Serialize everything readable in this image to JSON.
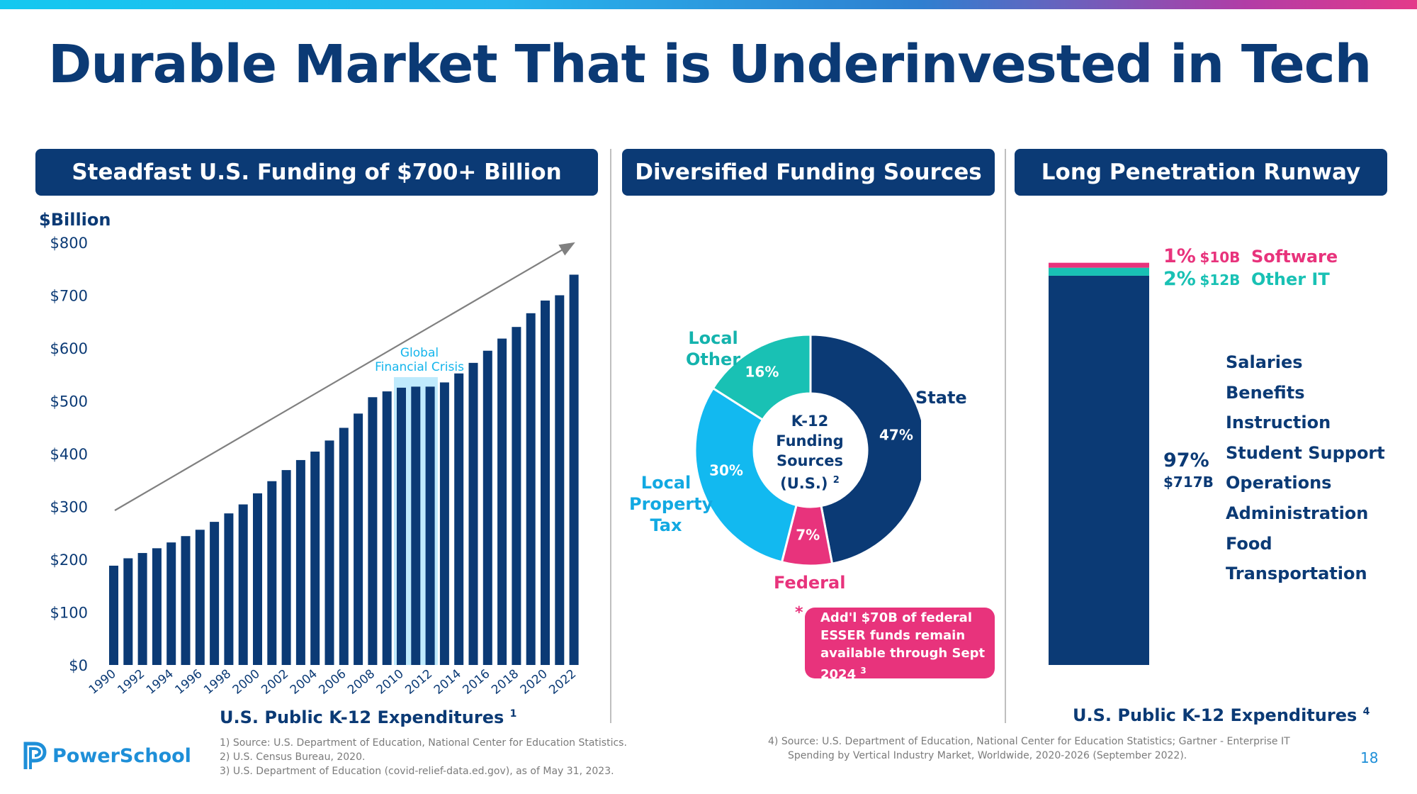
{
  "title": "Durable Market That is Underinvested in Tech",
  "panels": {
    "left_header": "Steadfast U.S. Funding of $700+ Billion",
    "middle_header": "Diversified Funding Sources",
    "right_header": "Long Penetration Runway"
  },
  "left": {
    "y_unit": "$Billion",
    "annotation": "Global Financial Crisis",
    "annotation_lines": [
      "Global",
      "Financial Crisis"
    ],
    "xlabel": "U.S. Public K-12 Expenditures",
    "xlabel_sup": "1",
    "colors": {
      "bar": "#0b3a75",
      "highlight": "#bfeafc",
      "trend": "#808080"
    }
  },
  "middle": {
    "center_lines": [
      "K-12",
      "Funding",
      "Sources",
      "(U.S.)"
    ],
    "center_sup": "2",
    "state_label": "State",
    "federal_label": "Federal",
    "local_other_lines": [
      "Local",
      "Other"
    ],
    "local_property_lines": [
      "Local",
      "Property",
      "Tax"
    ],
    "esser_star": "*",
    "esser_lines": [
      "Add'l $70B of federal",
      "ESSER funds remain",
      "available through Sept",
      "2024"
    ],
    "esser_sup": "3"
  },
  "right": {
    "software_pct": "1%",
    "software_amt": "$10B",
    "software_label": "Software",
    "otherit_pct": "2%",
    "otherit_amt": "$12B",
    "otherit_label": "Other IT",
    "rest_pct": "97%",
    "rest_amt": "$717B",
    "categories": [
      "Salaries",
      "Benefits",
      "Instruction",
      "Student Support",
      "Operations",
      "Administration",
      "Food",
      "Transportation"
    ],
    "xlabel": "U.S. Public K-12 Expenditures",
    "xlabel_sup": "4",
    "colors": {
      "software": "#e8337c",
      "other_it": "#19c1b4",
      "rest": "#0b3a75"
    }
  },
  "footnotes": {
    "f1": "1)   Source: U.S. Department of Education, National Center for Education Statistics.",
    "f2": "2)   U.S. Census Bureau, 2020.",
    "f3": "3)   U.S. Department of Education (covid-relief-data.ed.gov), as of May 31, 2023.",
    "f4a": "4)   Source: U.S. Department of Education, National Center for Education Statistics; Gartner - Enterprise IT",
    "f4b": "Spending by Vertical Industry Market, Worldwide, 2020-2026 (September 2022)."
  },
  "logo": "PowerSchool",
  "page_number": "18",
  "chart_data": [
    {
      "type": "bar",
      "title": "Steadfast U.S. Funding of $700+ Billion",
      "ylabel": "$Billion",
      "xlabel": "U.S. Public K-12 Expenditures",
      "ylim": [
        0,
        800
      ],
      "yticks": [
        0,
        100,
        200,
        300,
        400,
        500,
        600,
        700,
        800
      ],
      "ytick_labels": [
        "$0",
        "$100",
        "$200",
        "$300",
        "$400",
        "$500",
        "$600",
        "$700",
        "$800"
      ],
      "xtick_labels": [
        "1990",
        "1992",
        "1994",
        "1996",
        "1998",
        "2000",
        "2002",
        "2004",
        "2006",
        "2008",
        "2010",
        "2012",
        "2014",
        "2016",
        "2018",
        "2020",
        "2022"
      ],
      "categories": [
        "1990",
        "1991",
        "1992",
        "1993",
        "1994",
        "1995",
        "1996",
        "1997",
        "1998",
        "1999",
        "2000",
        "2001",
        "2002",
        "2003",
        "2004",
        "2005",
        "2006",
        "2007",
        "2008",
        "2009",
        "2010",
        "2011",
        "2012",
        "2013",
        "2014",
        "2015",
        "2016",
        "2017",
        "2018",
        "2019",
        "2020",
        "2021",
        "2022"
      ],
      "values": [
        188,
        202,
        212,
        221,
        232,
        244,
        256,
        271,
        287,
        304,
        325,
        348,
        369,
        388,
        404,
        425,
        449,
        476,
        507,
        518,
        525,
        527,
        527,
        535,
        552,
        572,
        595,
        618,
        640,
        666,
        690,
        700,
        739
      ],
      "highlight_range": [
        "2010",
        "2012"
      ],
      "grid": false,
      "legend": "none"
    },
    {
      "type": "pie",
      "title": "Diversified Funding Sources",
      "slices": [
        {
          "label": "State",
          "value": 47,
          "value_label": "47%",
          "color": "#0b3a75",
          "text_color": "#ffffff"
        },
        {
          "label": "Federal",
          "value": 7,
          "value_label": "7%",
          "color": "#e8337c",
          "text_color": "#ffffff"
        },
        {
          "label": "Local Property Tax",
          "value": 30,
          "value_label": "30%",
          "color": "#12b9f0",
          "text_color": "#ffffff"
        },
        {
          "label": "Local Other",
          "value": 16,
          "value_label": "16%",
          "color": "#19c1b4",
          "text_color": "#ffffff"
        }
      ]
    },
    {
      "type": "bar",
      "title": "Long Penetration Runway",
      "xlabel": "U.S. Public K-12 Expenditures",
      "stacked": true,
      "series": [
        {
          "name": "Salaries, Benefits, Instruction, Student Support, Operations, Administration, Food, Transportation",
          "value_pct": 97,
          "value_billion": 717
        },
        {
          "name": "Other IT",
          "value_pct": 2,
          "value_billion": 12
        },
        {
          "name": "Software",
          "value_pct": 1,
          "value_billion": 10
        }
      ]
    }
  ]
}
